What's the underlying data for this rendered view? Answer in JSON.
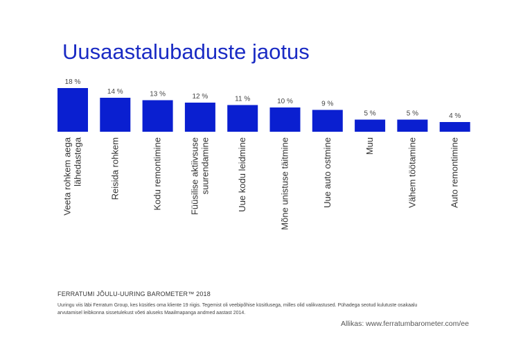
{
  "title": "Uusaastalubaduste jaotus",
  "footer": {
    "heading": "FERRATUMI JÕULU-UURING BAROMETER™ 2018",
    "note_line1": "Uuringu viis läbi Ferratum Group, kes küsitles oma kliente 19 riigis. Tegemist oli veebipõhise küsitlusega, milles olid valikvastused. Pühadega seotud kulutuste osakaalu",
    "note_line2": "arvutamisel leibkonna sissetulekust võeti aluseks Maailmapanga andmed aastast 2014.",
    "source": "Allikas:  www.ferratumbarometer.com/ee"
  },
  "chart_data": {
    "type": "bar",
    "categories": [
      "Veeta rohkem aega lähedastega",
      "Reisida rohkem",
      "Kodu remontimine",
      "Füüsilise aktiivsuse suurendamine",
      "Uue kodu leidmine",
      "Mõne unistuse täitmine",
      "Uue auto ostmine",
      "Muu",
      "Vähem töötamine",
      "Auto remontimine"
    ],
    "category_lines": [
      [
        "Veeta rohkem aega",
        "lähedastega"
      ],
      [
        "Reisida rohkem"
      ],
      [
        "Kodu remontimine"
      ],
      [
        "Füüsilise aktiivsuse",
        "suurendamine"
      ],
      [
        "Uue kodu leidmine"
      ],
      [
        "Mõne unistuse täitmine"
      ],
      [
        "Uue auto ostmine"
      ],
      [
        "Muu"
      ],
      [
        "Vähem töötamine"
      ],
      [
        "Auto remontimine"
      ]
    ],
    "values": [
      18,
      14,
      13,
      12,
      11,
      10,
      9,
      5,
      5,
      4
    ],
    "value_labels": [
      "18 %",
      "14 %",
      "13 %",
      "12 %",
      "11 %",
      "10 %",
      "9 %",
      "5 %",
      "5 %",
      "4 %"
    ],
    "ylim": [
      0,
      18
    ],
    "grid": false,
    "bar_color": "#0a1fd0",
    "xlabel": "",
    "ylabel": ""
  }
}
